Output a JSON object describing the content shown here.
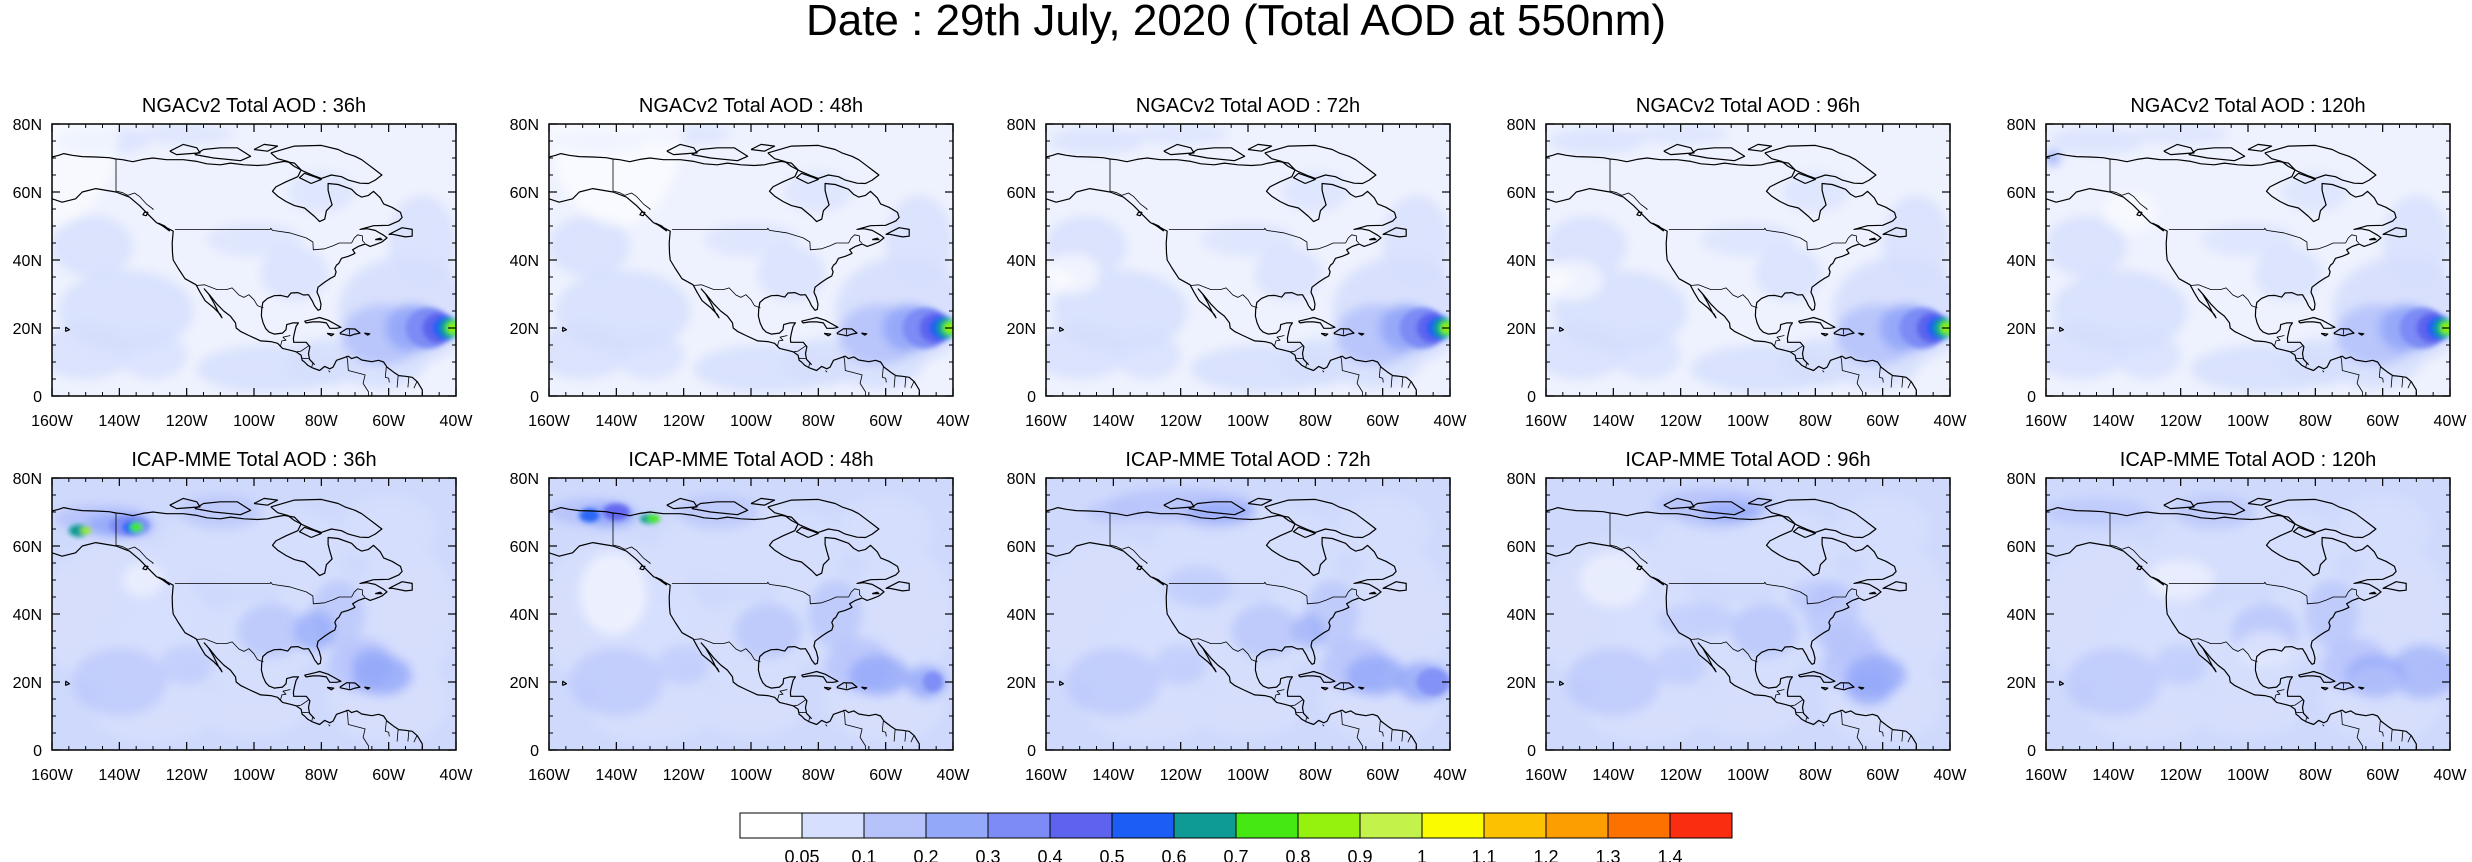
{
  "title": "Date : 29th July, 2020 (Total AOD at 550nm)",
  "panels": [
    {
      "title": "NGACv2 Total AOD : 36h",
      "model": "NGACv2",
      "lead": "36h"
    },
    {
      "title": "NGACv2 Total AOD : 48h",
      "model": "NGACv2",
      "lead": "48h"
    },
    {
      "title": "NGACv2 Total AOD : 72h",
      "model": "NGACv2",
      "lead": "72h"
    },
    {
      "title": "NGACv2 Total AOD : 96h",
      "model": "NGACv2",
      "lead": "96h"
    },
    {
      "title": "NGACv2 Total AOD : 120h",
      "model": "NGACv2",
      "lead": "120h"
    },
    {
      "title": "ICAP-MME Total AOD : 36h",
      "model": "ICAP-MME",
      "lead": "36h"
    },
    {
      "title": "ICAP-MME Total AOD : 48h",
      "model": "ICAP-MME",
      "lead": "48h"
    },
    {
      "title": "ICAP-MME Total AOD : 72h",
      "model": "ICAP-MME",
      "lead": "72h"
    },
    {
      "title": "ICAP-MME Total AOD : 96h",
      "model": "ICAP-MME",
      "lead": "96h"
    },
    {
      "title": "ICAP-MME Total AOD : 120h",
      "model": "ICAP-MME",
      "lead": "120h"
    }
  ],
  "map": {
    "lon_range": [
      -160,
      -40
    ],
    "lat_range": [
      0,
      80
    ],
    "lon_ticks": [
      "160W",
      "140W",
      "120W",
      "100W",
      "80W",
      "60W",
      "40W"
    ],
    "lat_ticks": [
      "0",
      "20N",
      "40N",
      "60N",
      "80N"
    ]
  },
  "colorbar": {
    "labels": [
      "0.05",
      "0.1",
      "0.2",
      "0.3",
      "0.4",
      "0.5",
      "0.6",
      "0.7",
      "0.8",
      "0.9",
      "1",
      "1.1",
      "1.2",
      "1.3",
      "1.4"
    ],
    "colors": [
      "#ffffff",
      "#d6dffd",
      "#b6c3fb",
      "#94a8f9",
      "#7c8bf5",
      "#5d63ee",
      "#1c5ef5",
      "#0e9a95",
      "#46e814",
      "#95f20e",
      "#c3f34a",
      "#fbfb00",
      "#fcc100",
      "#fd9e00",
      "#fd7100",
      "#fb2d10"
    ]
  }
}
